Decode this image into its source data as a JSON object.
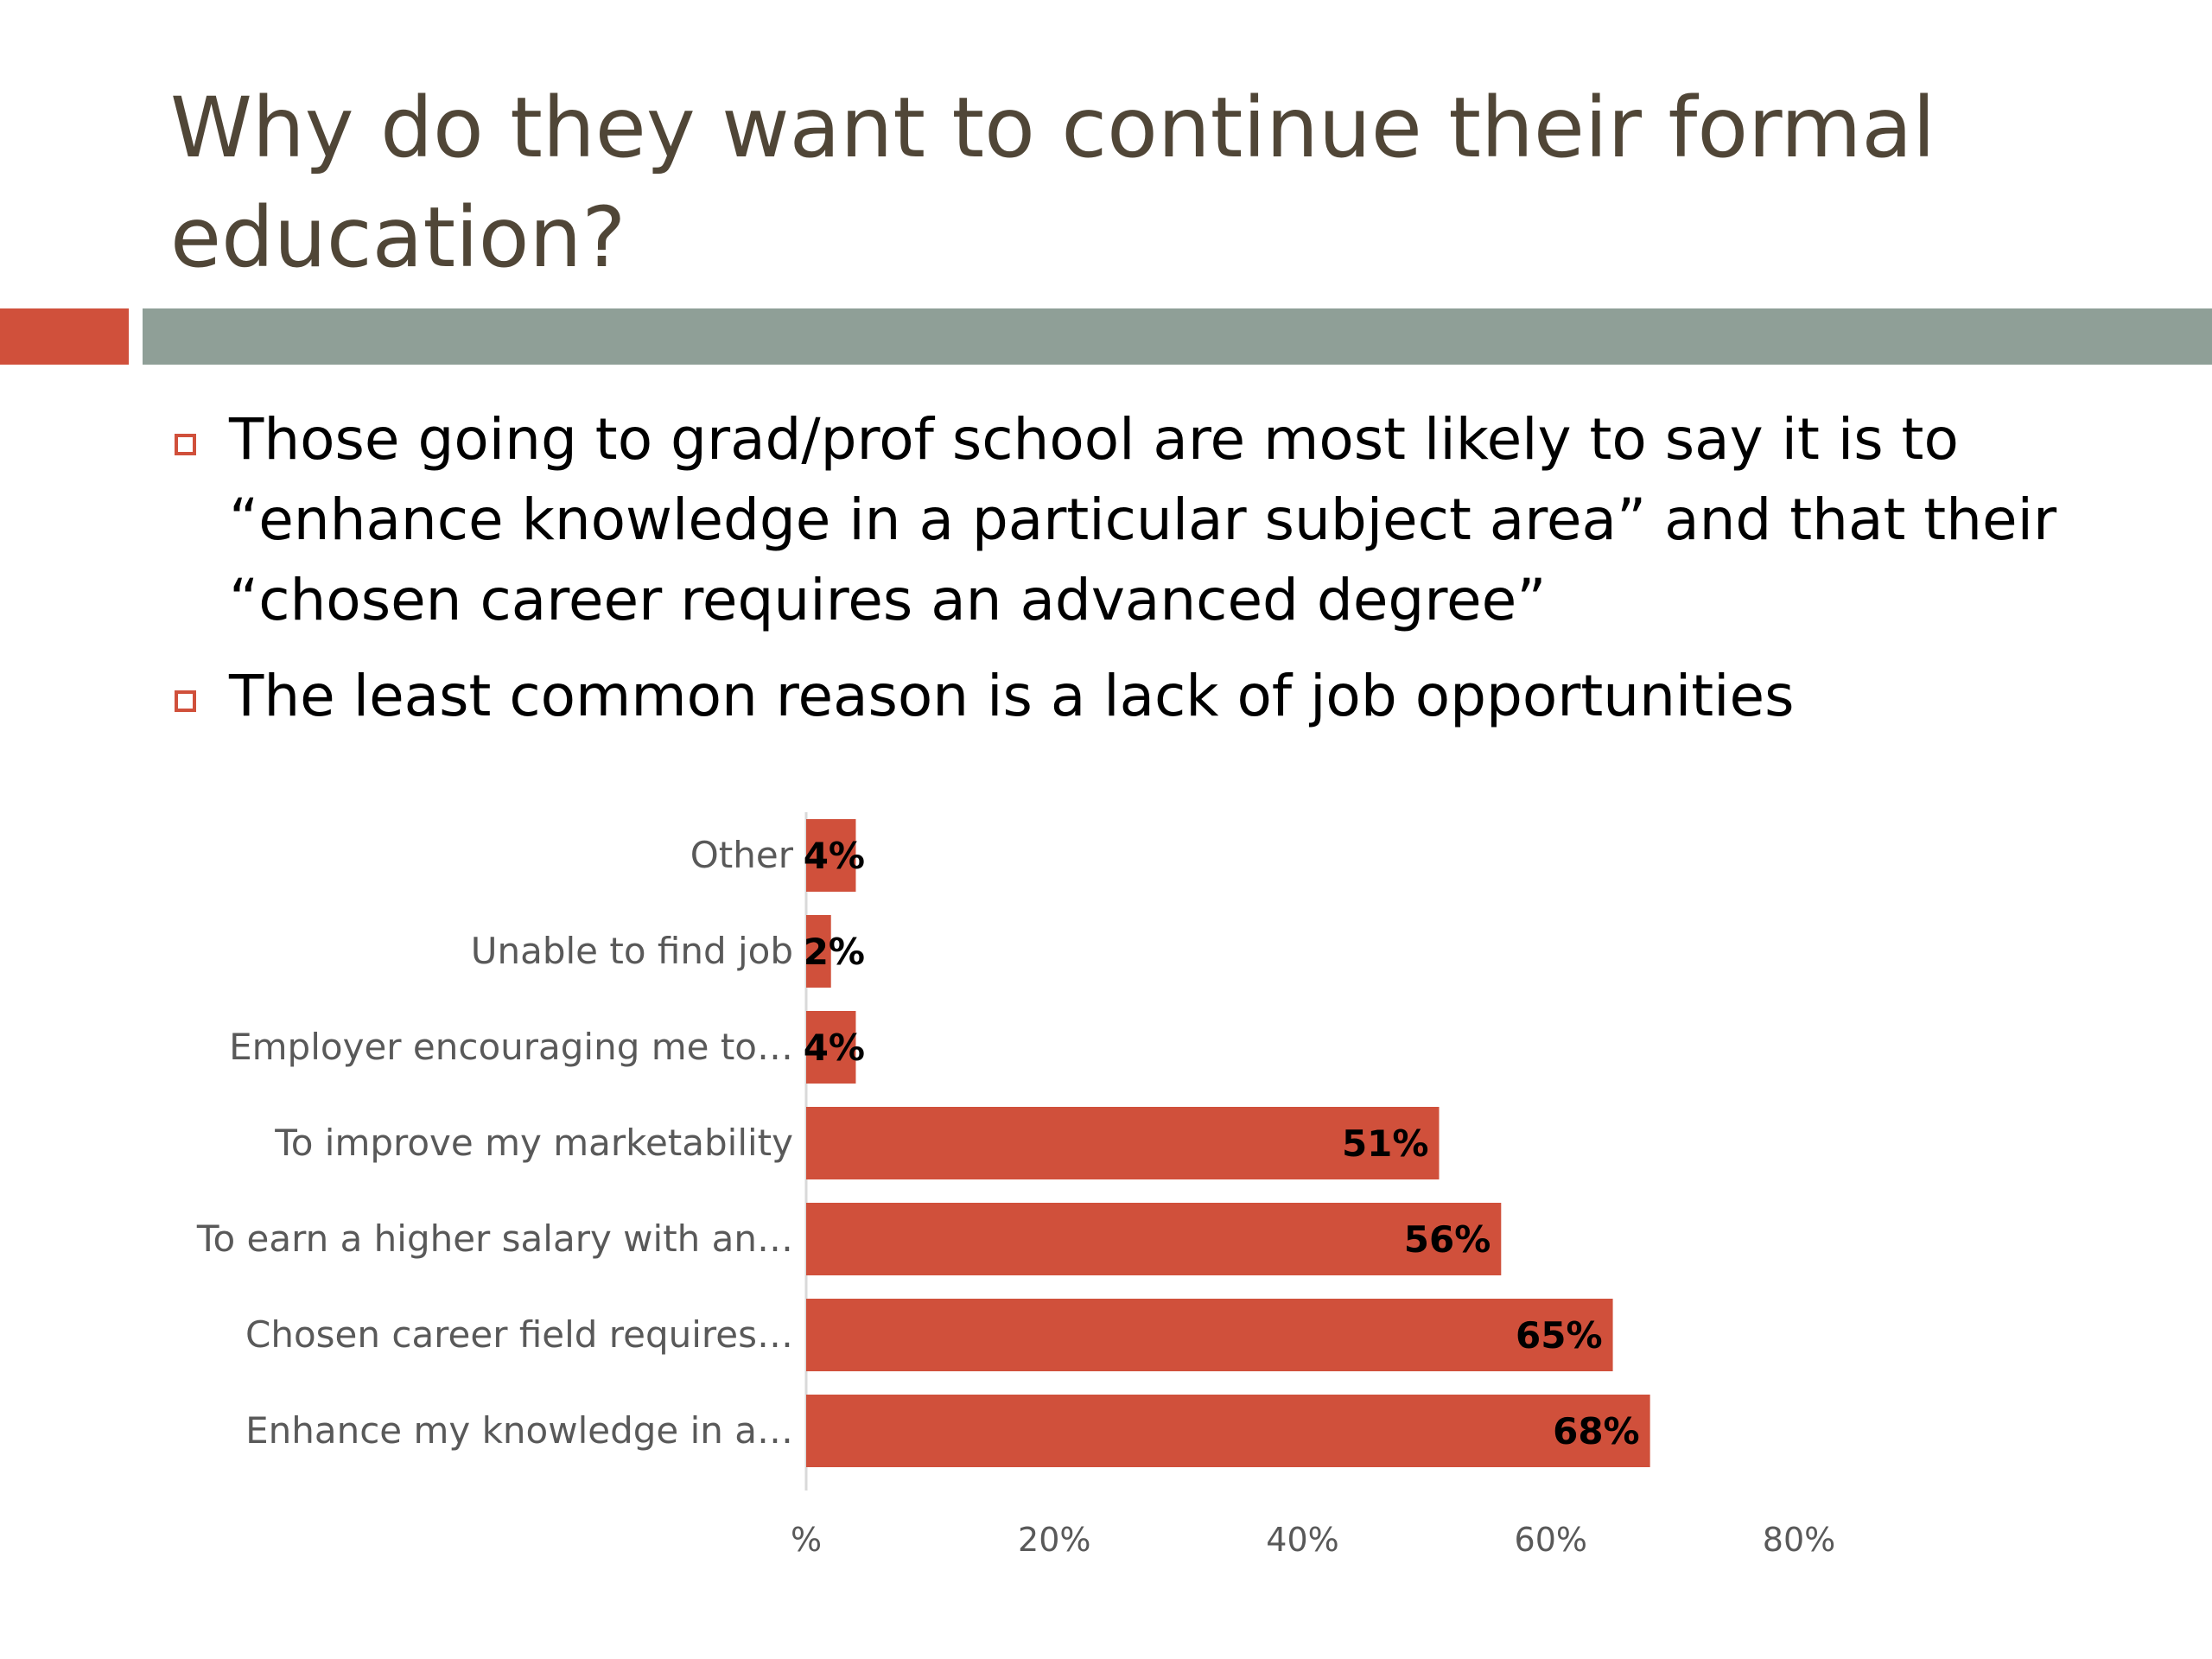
{
  "slide": {
    "title": "Why do they want to continue their formal education?",
    "bullets": [
      "Those going to grad/prof school are most likely to say it is to “enhance knowledge in a particular subject area” and that their “chosen career requires an advanced degree”",
      "The least common reason is a lack of job opportunities"
    ]
  },
  "colors": {
    "title": "#504637",
    "accent": "#d0503b",
    "band": "#8f9f97",
    "bar": "#d0503b"
  },
  "chart_data": {
    "type": "bar",
    "orientation": "horizontal",
    "categories": [
      "Other",
      "Unable to find job",
      "Employer encouraging me to…",
      "To improve my marketability",
      "To earn a higher salary with an…",
      "Chosen career field requires…",
      "Enhance my knowledge in a…"
    ],
    "values": [
      4,
      2,
      4,
      51,
      56,
      65,
      68
    ],
    "value_labels": [
      "4%",
      "2%",
      "4%",
      "51%",
      "56%",
      "65%",
      "68%"
    ],
    "xlim": [
      0,
      80
    ],
    "ticks": [
      0,
      20,
      40,
      60,
      80
    ],
    "tick_labels": [
      "%",
      "20%",
      "40%",
      "60%",
      "80%"
    ],
    "grid": false,
    "legend": "none"
  }
}
